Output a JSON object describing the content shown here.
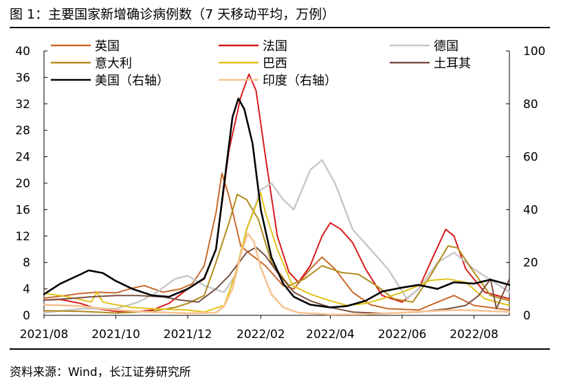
{
  "header": {
    "title": "图 1：主要国家新增确诊病例数（7 天移动平均，万例）"
  },
  "footer": {
    "source": "资料来源：Wind，长江证券研究所"
  },
  "chart_data": {
    "type": "line",
    "title": "图 1：主要国家新增确诊病例数（7 天移动平均，万例）",
    "xlabel": "",
    "ylabel": "万例",
    "ylim": [
      0,
      40
    ],
    "y2lim": [
      0,
      100
    ],
    "y_ticks": [
      0,
      4,
      8,
      12,
      16,
      20,
      24,
      28,
      32,
      36,
      40
    ],
    "y2_ticks": [
      0,
      20,
      40,
      60,
      80,
      100
    ],
    "x_range": [
      "2021-08-01",
      "2022-08-31"
    ],
    "x_ticks": [
      {
        "date": "2021-08-01",
        "label": "2021/08"
      },
      {
        "date": "2021-10-01",
        "label": "2021/10"
      },
      {
        "date": "2021-12-01",
        "label": "2021/12"
      },
      {
        "date": "2022-02-01",
        "label": "2022/02"
      },
      {
        "date": "2022-04-01",
        "label": "2022/04"
      },
      {
        "date": "2022-06-01",
        "label": "2022/06"
      },
      {
        "date": "2022-08-01",
        "label": "2022/08"
      }
    ],
    "legend_position": "top",
    "series": [
      {
        "name": "英国",
        "color": "#c8692a",
        "axis": "left",
        "width": 2,
        "points": [
          [
            "2021-08-01",
            2.6
          ],
          [
            "2021-08-15",
            2.9
          ],
          [
            "2021-09-01",
            3.3
          ],
          [
            "2021-09-15",
            3.5
          ],
          [
            "2021-10-01",
            3.4
          ],
          [
            "2021-10-15",
            4.1
          ],
          [
            "2021-10-25",
            4.5
          ],
          [
            "2021-11-10",
            3.5
          ],
          [
            "2021-11-25",
            4.0
          ],
          [
            "2021-12-05",
            4.8
          ],
          [
            "2021-12-15",
            7.5
          ],
          [
            "2021-12-25",
            15.5
          ],
          [
            "2021-12-30",
            21.5
          ],
          [
            "2022-01-05",
            18.0
          ],
          [
            "2022-01-15",
            10.5
          ],
          [
            "2022-01-25",
            9.0
          ],
          [
            "2022-02-05",
            7.5
          ],
          [
            "2022-02-20",
            4.5
          ],
          [
            "2022-03-01",
            4.0
          ],
          [
            "2022-03-15",
            7.0
          ],
          [
            "2022-03-25",
            8.8
          ],
          [
            "2022-04-05",
            7.0
          ],
          [
            "2022-04-20",
            3.5
          ],
          [
            "2022-05-05",
            1.6
          ],
          [
            "2022-05-20",
            1.0
          ],
          [
            "2022-06-15",
            0.8
          ],
          [
            "2022-07-01",
            2.0
          ],
          [
            "2022-07-15",
            3.0
          ],
          [
            "2022-08-01",
            1.5
          ],
          [
            "2022-08-31",
            0.8
          ]
        ]
      },
      {
        "name": "法国",
        "color": "#d71a1a",
        "axis": "left",
        "width": 2,
        "points": [
          [
            "2021-08-01",
            2.3
          ],
          [
            "2021-08-15",
            2.4
          ],
          [
            "2021-09-01",
            1.8
          ],
          [
            "2021-09-15",
            1.0
          ],
          [
            "2021-10-01",
            0.6
          ],
          [
            "2021-10-15",
            0.5
          ],
          [
            "2021-11-01",
            0.8
          ],
          [
            "2021-11-15",
            1.8
          ],
          [
            "2021-12-01",
            4.0
          ],
          [
            "2021-12-15",
            5.5
          ],
          [
            "2021-12-25",
            10.0
          ],
          [
            "2022-01-05",
            25.0
          ],
          [
            "2022-01-15",
            33.0
          ],
          [
            "2022-01-22",
            36.5
          ],
          [
            "2022-01-28",
            34.0
          ],
          [
            "2022-02-05",
            24.0
          ],
          [
            "2022-02-15",
            12.0
          ],
          [
            "2022-02-25",
            6.5
          ],
          [
            "2022-03-05",
            5.0
          ],
          [
            "2022-03-15",
            7.5
          ],
          [
            "2022-03-25",
            12.0
          ],
          [
            "2022-04-01",
            14.0
          ],
          [
            "2022-04-10",
            13.0
          ],
          [
            "2022-04-20",
            11.0
          ],
          [
            "2022-05-01",
            7.0
          ],
          [
            "2022-05-15",
            3.0
          ],
          [
            "2022-06-01",
            2.0
          ],
          [
            "2022-06-15",
            4.0
          ],
          [
            "2022-06-25",
            8.0
          ],
          [
            "2022-07-08",
            13.0
          ],
          [
            "2022-07-15",
            12.0
          ],
          [
            "2022-07-25",
            7.0
          ],
          [
            "2022-08-10",
            3.5
          ],
          [
            "2022-08-31",
            2.5
          ]
        ]
      },
      {
        "name": "德国",
        "color": "#c8c8c8",
        "axis": "left",
        "width": 2.5,
        "points": [
          [
            "2021-08-01",
            0.4
          ],
          [
            "2021-09-01",
            1.0
          ],
          [
            "2021-10-01",
            1.0
          ],
          [
            "2021-10-20",
            2.0
          ],
          [
            "2021-11-05",
            3.5
          ],
          [
            "2021-11-20",
            5.5
          ],
          [
            "2021-12-01",
            6.0
          ],
          [
            "2021-12-15",
            4.5
          ],
          [
            "2022-01-01",
            3.5
          ],
          [
            "2022-01-10",
            6.0
          ],
          [
            "2022-01-20",
            13.0
          ],
          [
            "2022-02-01",
            19.0
          ],
          [
            "2022-02-10",
            20.0
          ],
          [
            "2022-02-20",
            17.5
          ],
          [
            "2022-03-01",
            16.0
          ],
          [
            "2022-03-15",
            22.0
          ],
          [
            "2022-03-25",
            23.5
          ],
          [
            "2022-04-05",
            20.0
          ],
          [
            "2022-04-20",
            13.0
          ],
          [
            "2022-05-05",
            10.0
          ],
          [
            "2022-05-20",
            7.0
          ],
          [
            "2022-06-05",
            2.5
          ],
          [
            "2022-06-15",
            4.0
          ],
          [
            "2022-07-01",
            8.0
          ],
          [
            "2022-07-15",
            9.5
          ],
          [
            "2022-08-01",
            7.0
          ],
          [
            "2022-08-31",
            3.5
          ]
        ]
      },
      {
        "name": "意大利",
        "color": "#b08b1a",
        "axis": "left",
        "width": 2,
        "points": [
          [
            "2021-08-01",
            0.7
          ],
          [
            "2021-09-01",
            0.6
          ],
          [
            "2021-10-01",
            0.35
          ],
          [
            "2021-11-01",
            0.6
          ],
          [
            "2021-11-20",
            1.2
          ],
          [
            "2021-12-01",
            1.8
          ],
          [
            "2021-12-15",
            3.0
          ],
          [
            "2021-12-25",
            8.0
          ],
          [
            "2022-01-05",
            14.0
          ],
          [
            "2022-01-12",
            18.3
          ],
          [
            "2022-01-20",
            17.5
          ],
          [
            "2022-01-30",
            14.5
          ],
          [
            "2022-02-10",
            8.0
          ],
          [
            "2022-02-25",
            4.5
          ],
          [
            "2022-03-10",
            5.5
          ],
          [
            "2022-03-25",
            7.5
          ],
          [
            "2022-04-10",
            6.5
          ],
          [
            "2022-04-25",
            6.2
          ],
          [
            "2022-05-10",
            4.5
          ],
          [
            "2022-05-25",
            2.5
          ],
          [
            "2022-06-10",
            2.0
          ],
          [
            "2022-06-25",
            6.0
          ],
          [
            "2022-07-10",
            10.5
          ],
          [
            "2022-07-18",
            10.2
          ],
          [
            "2022-07-30",
            7.0
          ],
          [
            "2022-08-15",
            3.0
          ],
          [
            "2022-08-31",
            2.2
          ]
        ]
      },
      {
        "name": "巴西",
        "color": "#e2c21a",
        "axis": "left",
        "width": 2,
        "points": [
          [
            "2021-08-01",
            3.3
          ],
          [
            "2021-08-15",
            3.0
          ],
          [
            "2021-09-01",
            2.4
          ],
          [
            "2021-09-10",
            2.0
          ],
          [
            "2021-09-15",
            3.5
          ],
          [
            "2021-09-20",
            2.0
          ],
          [
            "2021-10-01",
            1.6
          ],
          [
            "2021-10-15",
            1.2
          ],
          [
            "2021-11-01",
            1.0
          ],
          [
            "2021-11-15",
            0.9
          ],
          [
            "2021-12-01",
            0.8
          ],
          [
            "2021-12-15",
            0.5
          ],
          [
            "2022-01-01",
            1.5
          ],
          [
            "2022-01-10",
            6.0
          ],
          [
            "2022-01-20",
            13.0
          ],
          [
            "2022-02-01",
            18.5
          ],
          [
            "2022-02-05",
            15.5
          ],
          [
            "2022-02-15",
            10.0
          ],
          [
            "2022-02-28",
            4.5
          ],
          [
            "2022-03-15",
            3.2
          ],
          [
            "2022-04-01",
            2.2
          ],
          [
            "2022-04-15",
            1.5
          ],
          [
            "2022-05-01",
            1.8
          ],
          [
            "2022-05-15",
            2.5
          ],
          [
            "2022-06-01",
            3.5
          ],
          [
            "2022-06-15",
            4.5
          ],
          [
            "2022-06-25",
            5.3
          ],
          [
            "2022-07-10",
            5.5
          ],
          [
            "2022-07-25",
            5.0
          ],
          [
            "2022-08-10",
            2.5
          ],
          [
            "2022-08-31",
            1.5
          ]
        ]
      },
      {
        "name": "土耳其",
        "color": "#7a5040",
        "axis": "left",
        "width": 2,
        "points": [
          [
            "2021-08-01",
            2.3
          ],
          [
            "2021-08-20",
            2.5
          ],
          [
            "2021-09-10",
            2.8
          ],
          [
            "2021-10-01",
            3.0
          ],
          [
            "2021-10-20",
            3.0
          ],
          [
            "2021-11-10",
            2.8
          ],
          [
            "2021-11-25",
            2.3
          ],
          [
            "2021-12-10",
            2.0
          ],
          [
            "2021-12-25",
            4.0
          ],
          [
            "2022-01-05",
            6.0
          ],
          [
            "2022-01-20",
            9.5
          ],
          [
            "2022-01-28",
            10.3
          ],
          [
            "2022-02-05",
            9.0
          ],
          [
            "2022-02-15",
            6.5
          ],
          [
            "2022-03-01",
            3.5
          ],
          [
            "2022-03-15",
            2.2
          ],
          [
            "2022-04-01",
            1.2
          ],
          [
            "2022-04-20",
            0.5
          ],
          [
            "2022-05-15",
            0.3
          ],
          [
            "2022-06-15",
            0.5
          ],
          [
            "2022-07-10",
            1.0
          ],
          [
            "2022-07-25",
            1.5
          ],
          [
            "2022-08-05",
            3.0
          ],
          [
            "2022-08-15",
            5.5
          ],
          [
            "2022-08-20",
            1.0
          ],
          [
            "2022-08-31",
            5.5
          ]
        ]
      },
      {
        "name": "美国（右轴）",
        "color": "#000000",
        "axis": "right",
        "width": 2.6,
        "points": [
          [
            "2021-08-01",
            8
          ],
          [
            "2021-08-15",
            12
          ],
          [
            "2021-09-01",
            15.5
          ],
          [
            "2021-09-08",
            17
          ],
          [
            "2021-09-20",
            16
          ],
          [
            "2021-10-01",
            13
          ],
          [
            "2021-10-15",
            10
          ],
          [
            "2021-11-01",
            7.5
          ],
          [
            "2021-11-15",
            7
          ],
          [
            "2021-12-01",
            10
          ],
          [
            "2021-12-15",
            14
          ],
          [
            "2021-12-25",
            25
          ],
          [
            "2022-01-01",
            50
          ],
          [
            "2022-01-08",
            75
          ],
          [
            "2022-01-13",
            82
          ],
          [
            "2022-01-18",
            78
          ],
          [
            "2022-01-25",
            65
          ],
          [
            "2022-02-01",
            40
          ],
          [
            "2022-02-10",
            22
          ],
          [
            "2022-02-20",
            12
          ],
          [
            "2022-03-01",
            7
          ],
          [
            "2022-03-15",
            4
          ],
          [
            "2022-04-01",
            3
          ],
          [
            "2022-04-15",
            3.5
          ],
          [
            "2022-05-01",
            5.5
          ],
          [
            "2022-05-15",
            9
          ],
          [
            "2022-06-01",
            10.5
          ],
          [
            "2022-06-15",
            11.5
          ],
          [
            "2022-07-01",
            10
          ],
          [
            "2022-07-15",
            12.5
          ],
          [
            "2022-08-01",
            12
          ],
          [
            "2022-08-15",
            13.5
          ],
          [
            "2022-08-31",
            11.5
          ]
        ]
      },
      {
        "name": "印度（右轴）",
        "color": "#f7c392",
        "axis": "right",
        "width": 2.6,
        "points": [
          [
            "2021-08-01",
            4.0
          ],
          [
            "2021-09-01",
            3.5
          ],
          [
            "2021-10-01",
            2.0
          ],
          [
            "2021-11-01",
            1.2
          ],
          [
            "2021-12-01",
            0.8
          ],
          [
            "2021-12-25",
            1.0
          ],
          [
            "2022-01-01",
            3.5
          ],
          [
            "2022-01-08",
            10
          ],
          [
            "2022-01-15",
            23
          ],
          [
            "2022-01-21",
            31
          ],
          [
            "2022-01-26",
            28
          ],
          [
            "2022-02-01",
            18
          ],
          [
            "2022-02-10",
            8
          ],
          [
            "2022-02-20",
            3
          ],
          [
            "2022-03-05",
            1
          ],
          [
            "2022-04-01",
            0.3
          ],
          [
            "2022-05-01",
            0.4
          ],
          [
            "2022-06-01",
            1.0
          ],
          [
            "2022-06-20",
            1.5
          ],
          [
            "2022-07-15",
            2.0
          ],
          [
            "2022-08-05",
            1.8
          ],
          [
            "2022-08-31",
            1.3
          ]
        ]
      }
    ]
  }
}
